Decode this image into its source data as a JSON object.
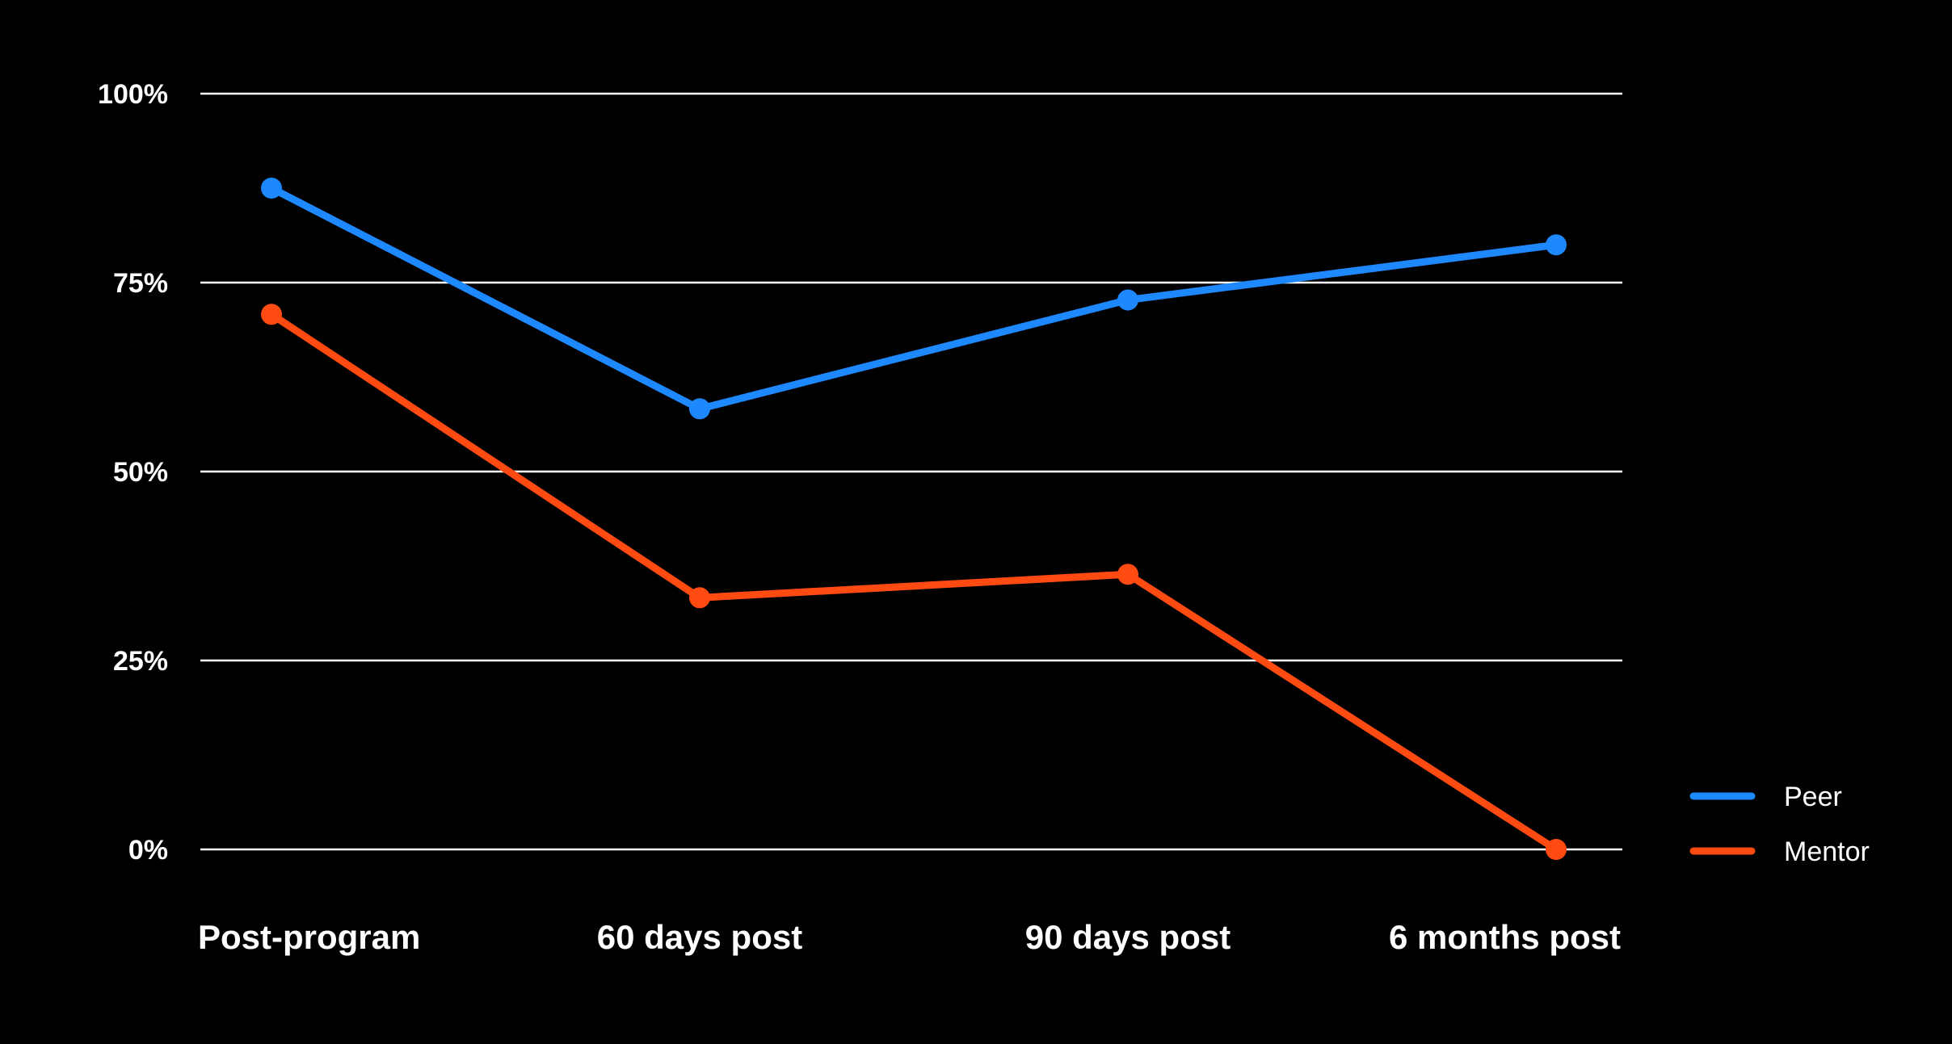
{
  "chart_data": {
    "type": "line",
    "categories": [
      "Post-program",
      "60 days post",
      "90 days post",
      "6 months post"
    ],
    "series": [
      {
        "name": "Peer",
        "color": "#1e88ff",
        "values": [
          87.5,
          58.3,
          72.7,
          80.0
        ]
      },
      {
        "name": "Mentor",
        "color": "#ff4a12",
        "values": [
          70.8,
          33.3,
          36.4,
          0.0
        ]
      }
    ],
    "ylim": [
      0,
      100
    ],
    "yticks": [
      {
        "value": 0,
        "label": "0%"
      },
      {
        "value": 25,
        "label": "25%"
      },
      {
        "value": 50,
        "label": "50%"
      },
      {
        "value": 75,
        "label": "75%"
      },
      {
        "value": 100,
        "label": "100%"
      }
    ],
    "grid": true,
    "legend_position": "bottom-right",
    "background": "#000000",
    "gridline_color": "#ffffff",
    "text_color": "#ffffff"
  }
}
